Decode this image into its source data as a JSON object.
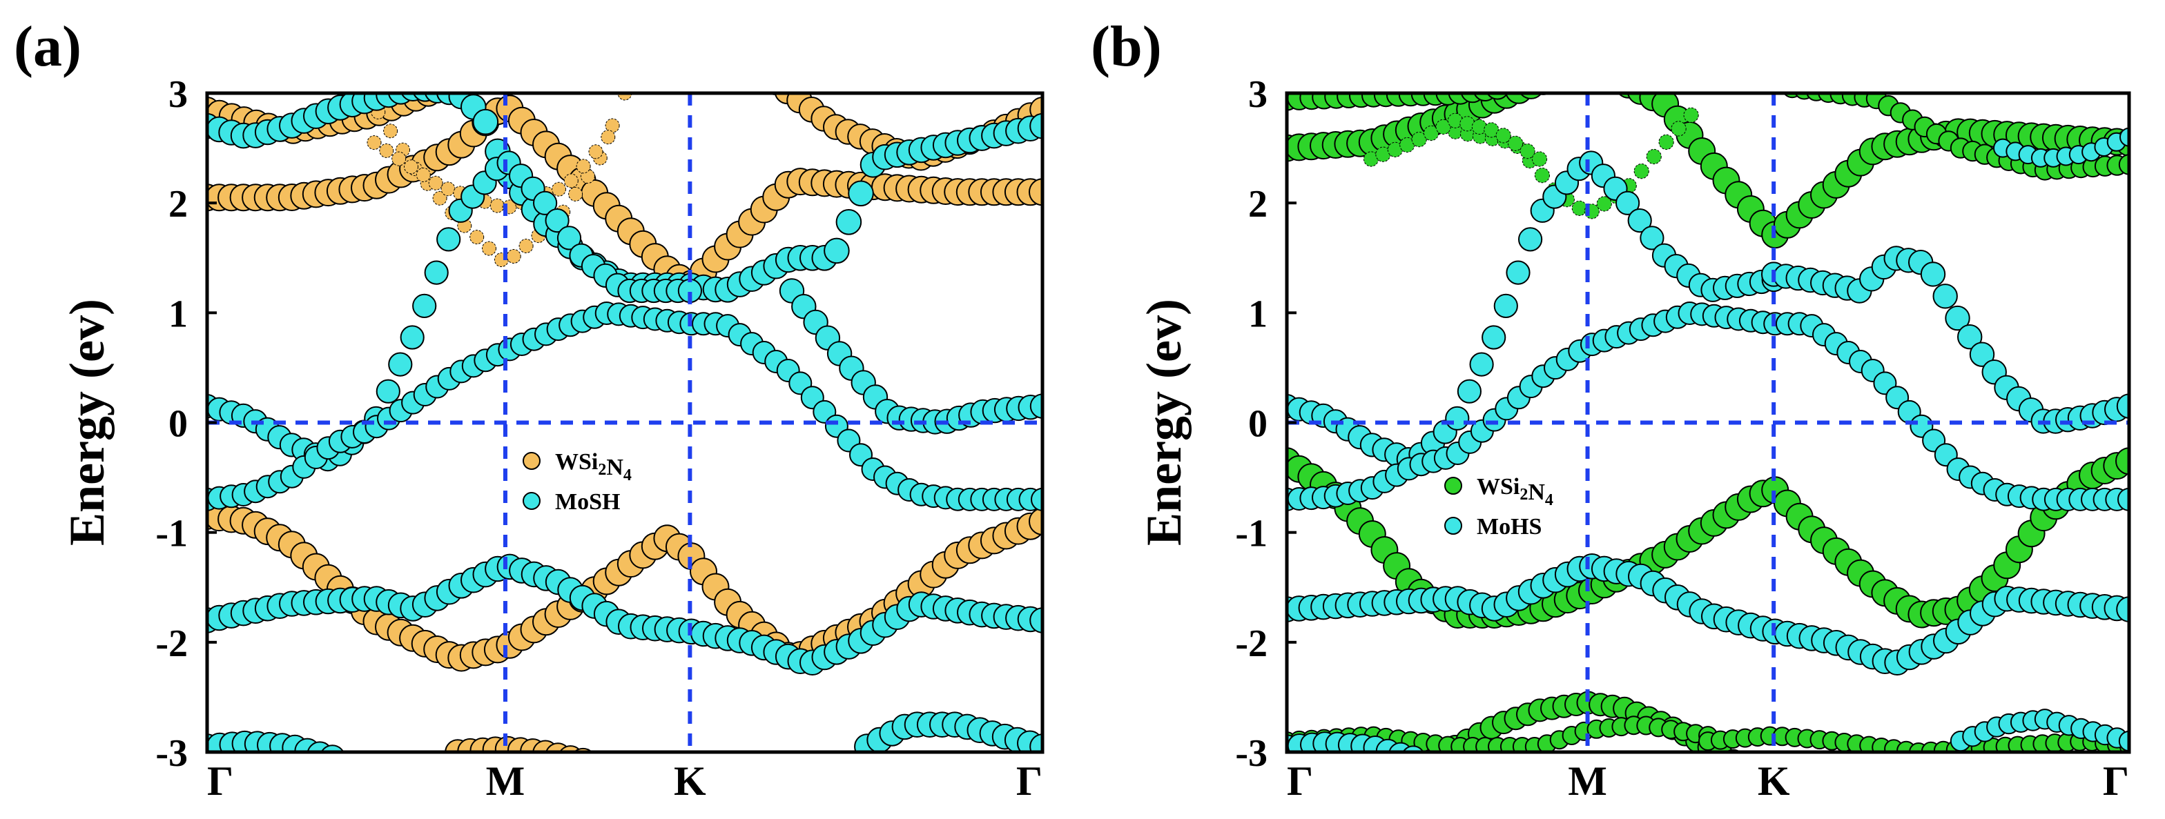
{
  "colors": {
    "wsi2n4_a": "#F5BF5E",
    "wsi2n4_b": "#2ED42A",
    "moh": "#3EE6E6",
    "guide": "#1F3FEE",
    "outline": "#000000"
  },
  "chart_data": [
    {
      "type": "scatter",
      "panel_label": "(a)",
      "ylabel": "Energy (ev)",
      "ylim": [
        -3,
        3
      ],
      "yticks": [
        "3",
        "2",
        "1",
        "0",
        "-1",
        "-2",
        "-3"
      ],
      "xlim": [
        0,
        1
      ],
      "kpoint_labels": [
        "Γ",
        "M",
        "K",
        "Γ"
      ],
      "kpoint_positions": [
        0,
        0.357,
        0.578,
        1
      ],
      "fermi_level": 0,
      "legend": {
        "position": "center",
        "entries": [
          {
            "name": "WSi2N4",
            "sub": [
              "2",
              "4"
            ],
            "color_key": "wsi2n4_a"
          },
          {
            "name": "MoSH",
            "color_key": "moh"
          }
        ]
      },
      "series": [
        {
          "name": "WSi2N4",
          "color_key": "wsi2n4_a",
          "bands": [
            {
              "x": [
                0,
                0.1,
                0.2,
                0.3,
                0.357,
                0.45,
                0.55,
                0.578,
                0.7,
                0.8,
                0.9,
                1
              ],
              "y": [
                2.05,
                2.05,
                2.15,
                2.5,
                2.9,
                2.2,
                1.4,
                1.25,
                2.2,
                2.15,
                2.1,
                2.1
              ],
              "weight": 1.0
            },
            {
              "x": [
                0,
                0.1,
                0.2,
                0.3,
                0.357,
                0.42,
                0.5
              ],
              "y": [
                2.85,
                2.65,
                2.8,
                3.1,
                3.2,
                3.3,
                3.3
              ],
              "weight": 0.9
            },
            {
              "x": [
                0.68,
                0.75,
                0.85,
                0.93,
                1
              ],
              "y": [
                3.1,
                2.7,
                2.4,
                2.6,
                2.85
              ],
              "weight": 0.9
            },
            {
              "x": [
                0.19,
                0.25,
                0.3,
                0.357,
                0.42,
                0.47,
                0.5
              ],
              "y": [
                3.0,
                2.3,
                1.85,
                1.45,
                1.85,
                2.4,
                3.0
              ],
              "weight": 0.25
            },
            {
              "x": [
                0.2,
                0.28,
                0.357,
                0.43,
                0.48
              ],
              "y": [
                2.55,
                2.15,
                1.95,
                2.15,
                2.6
              ],
              "weight": 0.25
            },
            {
              "x": [
                0,
                0.05,
                0.1,
                0.2,
                0.3,
                0.357,
                0.45,
                0.55,
                0.578,
                0.63,
                0.7,
                0.8,
                0.9,
                1
              ],
              "y": [
                -0.85,
                -0.9,
                -1.1,
                -1.8,
                -2.15,
                -2.05,
                -1.6,
                -1.05,
                -1.2,
                -1.7,
                -2.15,
                -1.8,
                -1.2,
                -0.9
              ],
              "weight": 1.0
            },
            {
              "x": [
                0.3,
                0.357,
                0.4,
                0.45
              ],
              "y": [
                -3.0,
                -2.97,
                -3.0,
                -3.08
              ],
              "weight": 0.9
            }
          ]
        },
        {
          "name": "MoSH",
          "color_key": "moh",
          "bands": [
            {
              "x": [
                0,
                0.05,
                0.1,
                0.15,
                0.2,
                0.25,
                0.3,
                0.33,
                0.357,
                0.4,
                0.45,
                0.5,
                0.578,
                0.62,
                0.65,
                0.7,
                0.75,
                0.8,
                0.9,
                1
              ],
              "y": [
                2.7,
                2.6,
                2.7,
                2.85,
                2.95,
                3.05,
                3.0,
                2.8,
                2.3,
                1.85,
                1.5,
                1.25,
                1.25,
                1.2,
                1.3,
                1.5,
                1.5,
                2.4,
                2.55,
                2.7
              ],
              "weight": 0.9
            },
            {
              "x": [
                0,
                0.05,
                0.1,
                0.15,
                0.2,
                0.25,
                0.3,
                0.357,
                0.4,
                0.45,
                0.5,
                0.578
              ],
              "y": [
                0.15,
                0.05,
                -0.2,
                -0.35,
                0.0,
                0.85,
                1.9,
                2.4,
                2.05,
                1.5,
                1.2,
                1.2
              ],
              "weight": 0.8
            },
            {
              "x": [
                0,
                0.05,
                0.1,
                0.15,
                0.2,
                0.25,
                0.3,
                0.357,
                0.42,
                0.48,
                0.578,
                0.62,
                0.7,
                0.8,
                0.85,
                0.9,
                0.95,
                1
              ],
              "y": [
                -0.7,
                -0.65,
                -0.5,
                -0.2,
                -0.05,
                0.2,
                0.45,
                0.65,
                0.85,
                1.0,
                0.9,
                0.9,
                0.45,
                -0.45,
                -0.65,
                -0.7,
                -0.7,
                -0.7
              ],
              "weight": 0.75
            },
            {
              "x": [
                0.7,
                0.76,
                0.82,
                0.88,
                0.93,
                1
              ],
              "y": [
                1.2,
                0.6,
                0.05,
                0.0,
                0.1,
                0.15
              ],
              "weight": 0.85
            },
            {
              "x": [
                0,
                0.1,
                0.2,
                0.25,
                0.3,
                0.357,
                0.42,
                0.5,
                0.578,
                0.65,
                0.72,
                0.78,
                0.85,
                0.93,
                1
              ],
              "y": [
                -1.8,
                -1.65,
                -1.6,
                -1.7,
                -1.5,
                -1.3,
                -1.45,
                -1.85,
                -1.9,
                -2.0,
                -2.2,
                -2.0,
                -1.65,
                -1.75,
                -1.8
              ],
              "weight": 0.9
            },
            {
              "x": [
                0,
                0.05,
                0.1,
                0.15
              ],
              "y": [
                -2.95,
                -2.92,
                -2.95,
                -3.05
              ],
              "weight": 0.9
            },
            {
              "x": [
                0.79,
                0.84,
                0.9,
                0.95,
                1
              ],
              "y": [
                -2.95,
                -2.75,
                -2.75,
                -2.85,
                -2.95
              ],
              "weight": 0.9
            }
          ]
        }
      ]
    },
    {
      "type": "scatter",
      "panel_label": "(b)",
      "ylabel": "Energy (ev)",
      "ylim": [
        -3,
        3
      ],
      "yticks": [
        "3",
        "2",
        "1",
        "0",
        "-1",
        "-2",
        "-3"
      ],
      "xlim": [
        0,
        1
      ],
      "kpoint_labels": [
        "Γ",
        "M",
        "K",
        "Γ"
      ],
      "kpoint_positions": [
        0,
        0.357,
        0.578,
        1
      ],
      "fermi_level": 0,
      "legend": {
        "position": "center",
        "entries": [
          {
            "name": "WSi2N4",
            "sub": [
              "2",
              "4"
            ],
            "color_key": "wsi2n4_b"
          },
          {
            "name": "MoHS",
            "color_key": "moh"
          }
        ]
      },
      "series": [
        {
          "name": "WSi2N4",
          "color_key": "wsi2n4_b",
          "bands": [
            {
              "x": [
                0,
                0.1,
                0.2,
                0.3,
                0.357,
                0.4,
                0.45,
                0.5,
                0.578,
                0.65,
                0.7,
                0.8,
                0.9,
                1
              ],
              "y": [
                2.5,
                2.55,
                2.8,
                3.1,
                3.2,
                3.1,
                2.9,
                2.4,
                1.7,
                2.15,
                2.5,
                2.65,
                2.6,
                2.55
              ],
              "weight": 1.0
            },
            {
              "x": [
                0,
                0.1,
                0.2,
                0.25
              ],
              "y": [
                2.95,
                2.98,
                3.0,
                3.05
              ],
              "weight": 0.8
            },
            {
              "x": [
                0.6,
                0.7,
                0.8,
                0.9,
                1
              ],
              "y": [
                3.05,
                2.95,
                2.5,
                2.3,
                2.35
              ],
              "weight": 0.6
            },
            {
              "x": [
                0.2,
                0.27,
                0.32,
                0.357,
                0.4,
                0.45,
                0.48
              ],
              "y": [
                2.65,
                2.55,
                2.1,
                1.9,
                2.1,
                2.55,
                2.8
              ],
              "weight": 0.3
            },
            {
              "x": [
                0.1,
                0.15,
                0.2,
                0.25,
                0.3
              ],
              "y": [
                2.4,
                2.55,
                2.75,
                2.65,
                2.4
              ],
              "weight": 0.3
            },
            {
              "x": [
                0,
                0.05,
                0.1,
                0.15,
                0.2,
                0.25,
                0.3,
                0.357,
                0.45,
                0.55,
                0.578,
                0.62,
                0.7,
                0.75,
                0.8,
                0.85,
                0.9,
                0.95,
                1
              ],
              "y": [
                -0.35,
                -0.6,
                -1.0,
                -1.5,
                -1.75,
                -1.75,
                -1.7,
                -1.55,
                -1.2,
                -0.7,
                -0.6,
                -0.95,
                -1.5,
                -1.75,
                -1.7,
                -1.35,
                -0.85,
                -0.5,
                -0.35
              ],
              "weight": 1.0
            },
            {
              "x": [
                0.2,
                0.25,
                0.3,
                0.357,
                0.4,
                0.45,
                0.5,
                0.53
              ],
              "y": [
                -2.95,
                -2.75,
                -2.62,
                -2.55,
                -2.6,
                -2.75,
                -2.95,
                -3.08
              ],
              "weight": 0.75
            },
            {
              "x": [
                0,
                0.1,
                0.15,
                0.2,
                0.3,
                0.357,
                0.42,
                0.5
              ],
              "y": [
                -2.9,
                -2.85,
                -2.9,
                -2.95,
                -2.95,
                -2.8,
                -2.75,
                -2.85
              ],
              "weight": 0.5
            },
            {
              "x": [
                0.5,
                0.578,
                0.65,
                0.75,
                0.85,
                0.95,
                1
              ],
              "y": [
                -2.9,
                -2.85,
                -2.9,
                -3.0,
                -2.95,
                -2.9,
                -2.95
              ],
              "weight": 0.5
            }
          ]
        },
        {
          "name": "MoHS",
          "color_key": "moh",
          "bands": [
            {
              "x": [
                0,
                0.05,
                0.1,
                0.15,
                0.2,
                0.25,
                0.3,
                0.357,
                0.4,
                0.45,
                0.5,
                0.578
              ],
              "y": [
                0.15,
                0.05,
                -0.2,
                -0.35,
                0.0,
                0.85,
                1.9,
                2.4,
                2.05,
                1.5,
                1.2,
                1.3
              ],
              "weight": 0.8
            },
            {
              "x": [
                0,
                0.05,
                0.1,
                0.15,
                0.2,
                0.25,
                0.3,
                0.357,
                0.42,
                0.48,
                0.578,
                0.62,
                0.7,
                0.8,
                0.85,
                0.9,
                0.95,
                1
              ],
              "y": [
                -0.7,
                -0.68,
                -0.6,
                -0.4,
                -0.3,
                0.05,
                0.4,
                0.7,
                0.85,
                1.0,
                0.9,
                0.9,
                0.45,
                -0.45,
                -0.65,
                -0.7,
                -0.7,
                -0.7
              ],
              "weight": 0.75
            },
            {
              "x": [
                0.578,
                0.62,
                0.68,
                0.72,
                0.76,
                0.8,
                0.85,
                0.9,
                0.95,
                1
              ],
              "y": [
                1.35,
                1.3,
                1.2,
                1.5,
                1.45,
                0.9,
                0.35,
                0.0,
                0.05,
                0.15
              ],
              "weight": 0.85
            },
            {
              "x": [
                0,
                0.1,
                0.2,
                0.25,
                0.3,
                0.357,
                0.42,
                0.5,
                0.578,
                0.65,
                0.72,
                0.78,
                0.85,
                0.93,
                1
              ],
              "y": [
                -1.7,
                -1.65,
                -1.6,
                -1.7,
                -1.5,
                -1.3,
                -1.4,
                -1.75,
                -1.9,
                -2.0,
                -2.2,
                -2.0,
                -1.6,
                -1.65,
                -1.7
              ],
              "weight": 0.9
            },
            {
              "x": [
                0,
                0.05,
                0.1,
                0.15
              ],
              "y": [
                -2.95,
                -2.92,
                -2.95,
                -3.05
              ],
              "weight": 0.8
            },
            {
              "x": [
                0.8,
                0.85,
                0.9,
                0.95,
                1
              ],
              "y": [
                -2.9,
                -2.75,
                -2.7,
                -2.8,
                -2.9
              ],
              "weight": 0.6
            },
            {
              "x": [
                0.85,
                0.9,
                0.95,
                1
              ],
              "y": [
                2.5,
                2.4,
                2.45,
                2.6
              ],
              "weight": 0.5
            }
          ]
        }
      ]
    }
  ]
}
